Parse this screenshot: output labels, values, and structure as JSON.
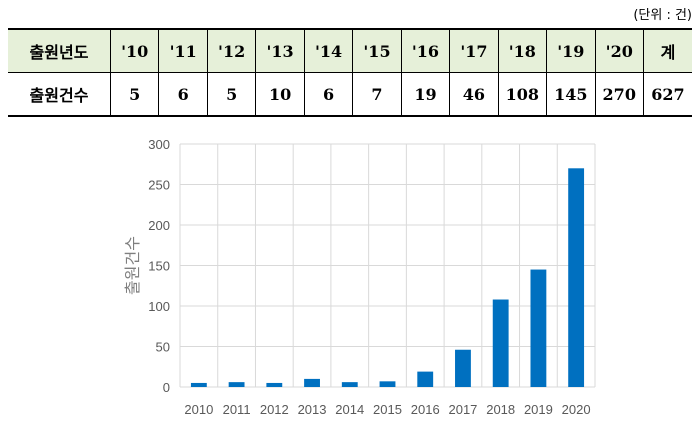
{
  "unit_note": "(단위 : 건)",
  "table": {
    "header_label": "출원년도",
    "value_label": "출원건수",
    "years": [
      "'10",
      "'11",
      "'12",
      "'13",
      "'14",
      "'15",
      "'16",
      "'17",
      "'18",
      "'19",
      "'20",
      "계"
    ],
    "counts": [
      "5",
      "6",
      "5",
      "10",
      "6",
      "7",
      "19",
      "46",
      "108",
      "145",
      "270",
      "627"
    ]
  },
  "colors": {
    "bar": "#0070c0",
    "grid": "#d9d9d9",
    "axis_text": "#595959",
    "header_bg": "#e6f0d9"
  },
  "chart_data": {
    "type": "bar",
    "categories": [
      "2010",
      "2011",
      "2012",
      "2013",
      "2014",
      "2015",
      "2016",
      "2017",
      "2018",
      "2019",
      "2020"
    ],
    "values": [
      5,
      6,
      5,
      10,
      6,
      7,
      19,
      46,
      108,
      145,
      270
    ],
    "ylabel": "출원건수",
    "ylim": [
      0,
      300
    ],
    "yticks": [
      0,
      50,
      100,
      150,
      200,
      250,
      300
    ],
    "grid": true
  }
}
